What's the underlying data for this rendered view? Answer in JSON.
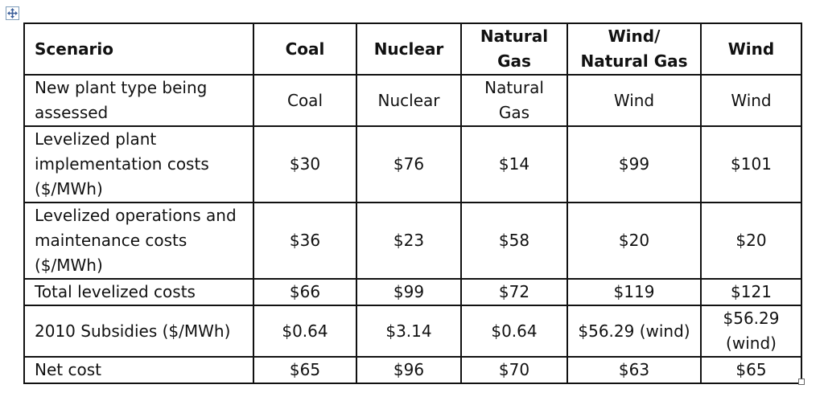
{
  "table": {
    "headers": [
      "Scenario",
      "Coal",
      "Nuclear",
      "Natural Gas",
      "Wind/ Natural Gas",
      "Wind"
    ],
    "rows": [
      {
        "label": "New plant type being assessed",
        "values": [
          "Coal",
          "Nuclear",
          "Natural Gas",
          "Wind",
          "Wind"
        ]
      },
      {
        "label": "Levelized plant implementation costs ($/MWh)",
        "values": [
          "$30",
          "$76",
          "$14",
          "$99",
          "$101"
        ]
      },
      {
        "label": "Levelized operations and maintenance costs ($/MWh)",
        "values": [
          "$36",
          "$23",
          "$58",
          "$20",
          "$20"
        ]
      },
      {
        "label": "Total levelized costs",
        "values": [
          "$66",
          "$99",
          "$72",
          "$119",
          "$121"
        ]
      },
      {
        "label": "2010 Subsidies ($/MWh)",
        "values": [
          "$0.64",
          "$3.14",
          "$0.64",
          "$56.29 (wind)",
          "$56.29 (wind)"
        ]
      },
      {
        "label": "Net cost",
        "values": [
          "$65",
          "$96",
          "$70",
          "$63",
          "$65"
        ]
      }
    ]
  },
  "icons": {
    "move": "move-arrows-icon",
    "resize": "resize-handle-icon"
  }
}
